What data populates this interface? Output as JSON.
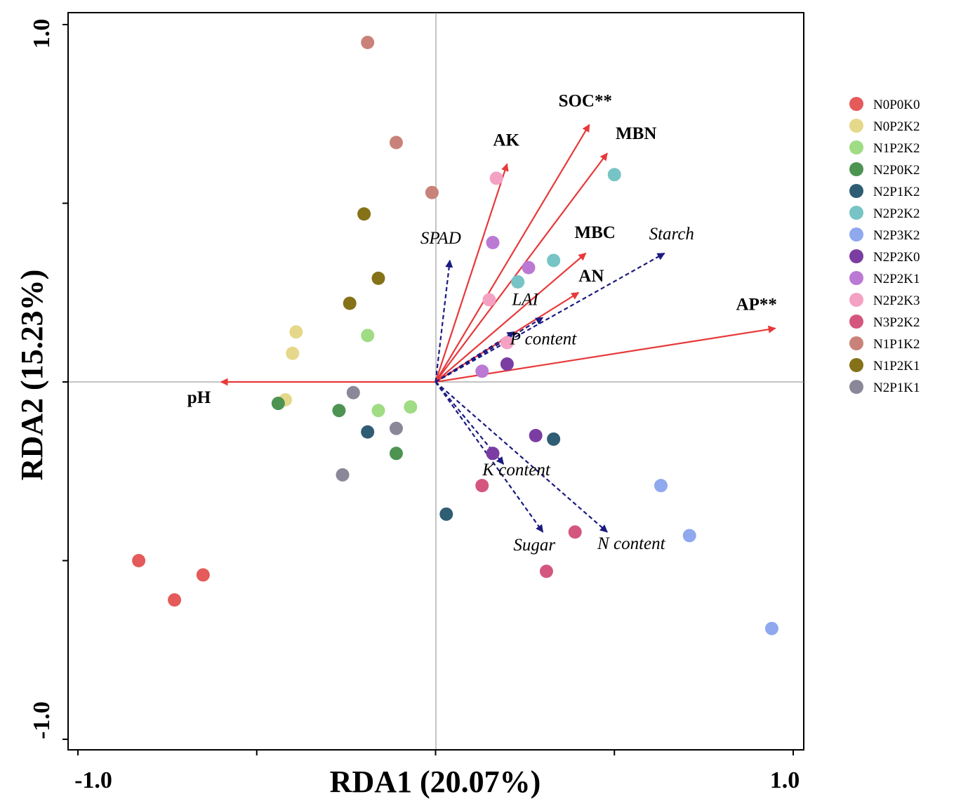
{
  "chart_data": {
    "type": "scatter",
    "subtype": "rda-biplot",
    "xlabel": "RDA1 (20.07%)",
    "ylabel": "RDA2 (15.23%)",
    "xlim": [
      -1.0,
      1.0
    ],
    "ylim": [
      -1.0,
      1.0
    ],
    "x_ticks": [
      -1.0,
      -0.5,
      0.0,
      0.5,
      1.0
    ],
    "y_ticks": [
      -1.0,
      -0.5,
      0.0,
      0.5,
      1.0
    ],
    "x_tick_labels": [
      "-1.0",
      "1.0"
    ],
    "y_tick_labels": [
      "1.0",
      "-1.0"
    ],
    "zero_lines": true,
    "legend_position": "right",
    "arrow_colors": {
      "environment": "#e8393a",
      "response": "#1a1a80"
    },
    "env_arrows": [
      {
        "label": "pH",
        "x": -0.6,
        "y": 0.0
      },
      {
        "label": "AK",
        "x": 0.2,
        "y": 0.61
      },
      {
        "label": "SOC**",
        "x": 0.43,
        "y": 0.72
      },
      {
        "label": "MBN",
        "x": 0.48,
        "y": 0.64
      },
      {
        "label": "MBC",
        "x": 0.42,
        "y": 0.36
      },
      {
        "label": "AN",
        "x": 0.4,
        "y": 0.25
      },
      {
        "label": "AP**",
        "x": 0.95,
        "y": 0.15
      }
    ],
    "response_arrows": [
      {
        "label": "SPAD",
        "x": 0.04,
        "y": 0.34
      },
      {
        "label": "Starch",
        "x": 0.64,
        "y": 0.36
      },
      {
        "label": "LAI",
        "x": 0.3,
        "y": 0.18
      },
      {
        "label": "P content",
        "x": 0.22,
        "y": 0.14
      },
      {
        "label": "K content",
        "x": 0.19,
        "y": -0.23
      },
      {
        "label": "Sugar",
        "x": 0.3,
        "y": -0.42
      },
      {
        "label": "N content",
        "x": 0.48,
        "y": -0.42
      }
    ],
    "series": [
      {
        "name": "N0P0K0",
        "color": "#e55a5a",
        "points": [
          [
            -0.83,
            -0.5
          ],
          [
            -0.73,
            -0.61
          ],
          [
            -0.65,
            -0.54
          ]
        ]
      },
      {
        "name": "N0P2K2",
        "color": "#e6d88a",
        "points": [
          [
            -0.39,
            0.14
          ],
          [
            -0.4,
            0.08
          ],
          [
            -0.42,
            -0.05
          ]
        ]
      },
      {
        "name": "N1P2K2",
        "color": "#9fdc84",
        "points": [
          [
            -0.19,
            0.13
          ],
          [
            -0.16,
            -0.08
          ],
          [
            -0.07,
            -0.07
          ]
        ]
      },
      {
        "name": "N2P0K2",
        "color": "#4d9452",
        "points": [
          [
            -0.44,
            -0.06
          ],
          [
            -0.27,
            -0.08
          ],
          [
            -0.11,
            -0.2
          ]
        ]
      },
      {
        "name": "N2P1K2",
        "color": "#2e5d74",
        "points": [
          [
            -0.19,
            -0.14
          ],
          [
            0.33,
            -0.16
          ],
          [
            0.03,
            -0.37
          ]
        ]
      },
      {
        "name": "N2P2K2",
        "color": "#77c3c5",
        "points": [
          [
            0.5,
            0.58
          ],
          [
            0.33,
            0.34
          ],
          [
            0.23,
            0.28
          ]
        ]
      },
      {
        "name": "N2P3K2",
        "color": "#8fa8ee",
        "points": [
          [
            0.63,
            -0.29
          ],
          [
            0.71,
            -0.43
          ],
          [
            0.94,
            -0.69
          ]
        ]
      },
      {
        "name": "N2P2K0",
        "color": "#7b3da2",
        "points": [
          [
            0.2,
            0.05
          ],
          [
            0.28,
            -0.15
          ],
          [
            0.16,
            -0.2
          ]
        ]
      },
      {
        "name": "N2P2K1",
        "color": "#bb79d4",
        "points": [
          [
            0.16,
            0.39
          ],
          [
            0.26,
            0.32
          ],
          [
            0.13,
            0.03
          ]
        ]
      },
      {
        "name": "N2P2K3",
        "color": "#f4a2c4",
        "points": [
          [
            0.17,
            0.57
          ],
          [
            0.15,
            0.23
          ],
          [
            0.2,
            0.11
          ]
        ]
      },
      {
        "name": "N3P2K2",
        "color": "#d4567e",
        "points": [
          [
            0.13,
            -0.29
          ],
          [
            0.39,
            -0.42
          ],
          [
            0.31,
            -0.53
          ]
        ]
      },
      {
        "name": "N1P1K2",
        "color": "#c98279",
        "points": [
          [
            -0.19,
            0.95
          ],
          [
            -0.11,
            0.67
          ],
          [
            -0.01,
            0.53
          ]
        ]
      },
      {
        "name": "N1P2K1",
        "color": "#857218",
        "points": [
          [
            -0.2,
            0.47
          ],
          [
            -0.16,
            0.29
          ],
          [
            -0.24,
            0.22
          ]
        ]
      },
      {
        "name": "N2P1K1",
        "color": "#8a8898",
        "points": [
          [
            -0.23,
            -0.03
          ],
          [
            -0.11,
            -0.13
          ],
          [
            -0.26,
            -0.26
          ]
        ]
      }
    ]
  }
}
